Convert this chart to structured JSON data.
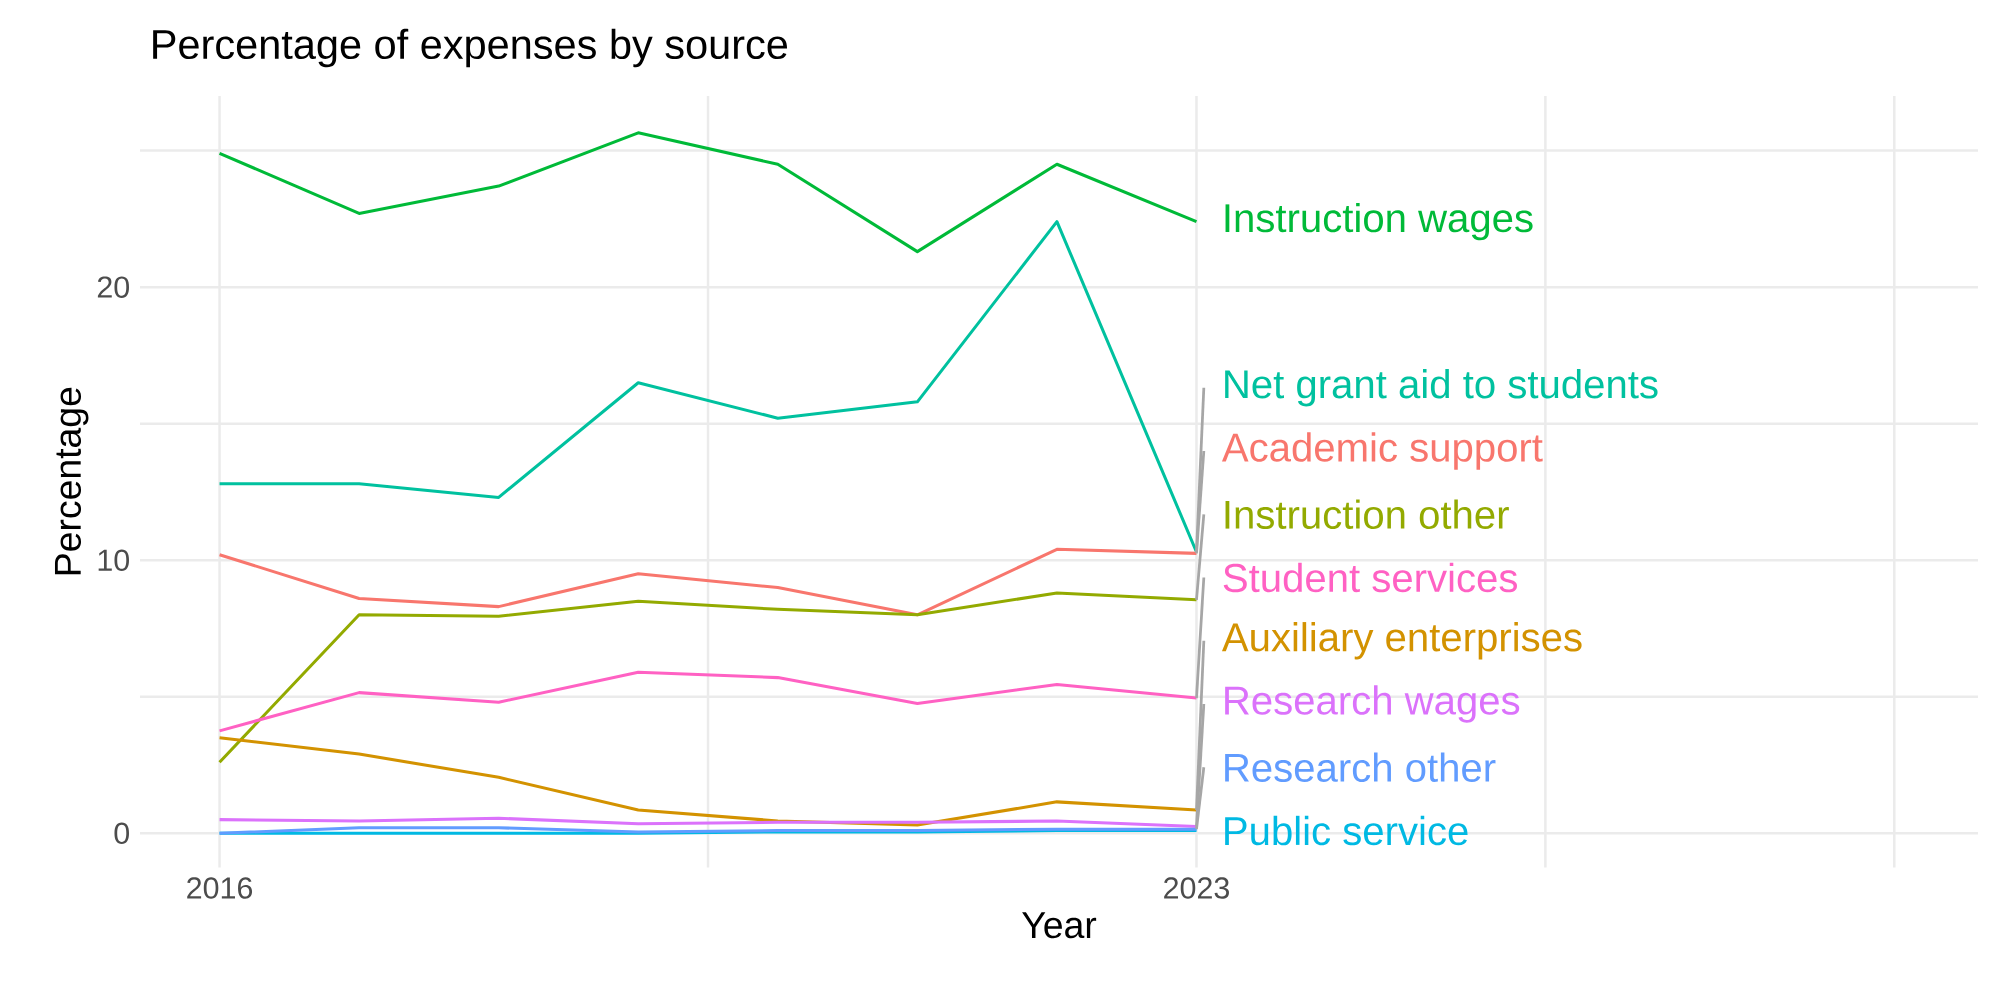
{
  "chart_data": {
    "type": "line",
    "title": "Percentage of expenses by source",
    "xlabel": "Year",
    "ylabel": "Percentage",
    "x": [
      2016,
      2017,
      2018,
      2019,
      2020,
      2021,
      2022,
      2023
    ],
    "xlim": [
      2015.43,
      2028.6
    ],
    "xticks": [
      2016,
      {
        "value": 2019.5,
        "label": null
      },
      2023,
      {
        "value": 2025.5,
        "label": null
      },
      {
        "value": 2028,
        "label": null
      }
    ],
    "ylim": [
      -1.25,
      27
    ],
    "yticks": [
      0,
      {
        "value": 5,
        "label": null
      },
      10,
      {
        "value": 15,
        "label": null
      },
      20,
      {
        "value": 25,
        "label": null
      }
    ],
    "grid": true,
    "legend": false,
    "marker": "none",
    "series": [
      {
        "name": "Instruction wages",
        "color": "#00BA38",
        "values": [
          24.9,
          22.7,
          23.7,
          25.65,
          24.5,
          21.3,
          24.5,
          22.4
        ]
      },
      {
        "name": "Net grant aid to students",
        "color": "#00C19F",
        "values": [
          12.8,
          12.8,
          12.3,
          16.5,
          15.2,
          15.8,
          22.4,
          10.3
        ]
      },
      {
        "name": "Academic support",
        "color": "#F8766D",
        "values": [
          10.2,
          8.6,
          8.3,
          9.5,
          9.0,
          8.0,
          10.4,
          10.25
        ]
      },
      {
        "name": "Instruction other",
        "color": "#93AA00",
        "values": [
          2.6,
          8.0,
          7.95,
          8.5,
          8.2,
          8.0,
          8.8,
          8.55
        ]
      },
      {
        "name": "Student services",
        "color": "#FF61C3",
        "values": [
          3.75,
          5.15,
          4.8,
          5.9,
          5.7,
          4.75,
          5.45,
          4.95
        ]
      },
      {
        "name": "Auxiliary enterprises",
        "color": "#D39200",
        "values": [
          3.5,
          2.9,
          2.05,
          0.85,
          0.45,
          0.3,
          1.15,
          0.85
        ]
      },
      {
        "name": "Research wages",
        "color": "#DB72FB",
        "values": [
          0.5,
          0.45,
          0.55,
          0.35,
          0.4,
          0.4,
          0.45,
          0.25
        ]
      },
      {
        "name": "Public service",
        "color": "#00B9E3",
        "values": [
          0.0,
          0.0,
          0.0,
          0.0,
          0.05,
          0.05,
          0.1,
          0.1
        ]
      },
      {
        "name": "Research other",
        "color": "#619CFF",
        "values": [
          0.0,
          0.2,
          0.2,
          0.05,
          0.1,
          0.1,
          0.15,
          0.15
        ]
      }
    ]
  }
}
